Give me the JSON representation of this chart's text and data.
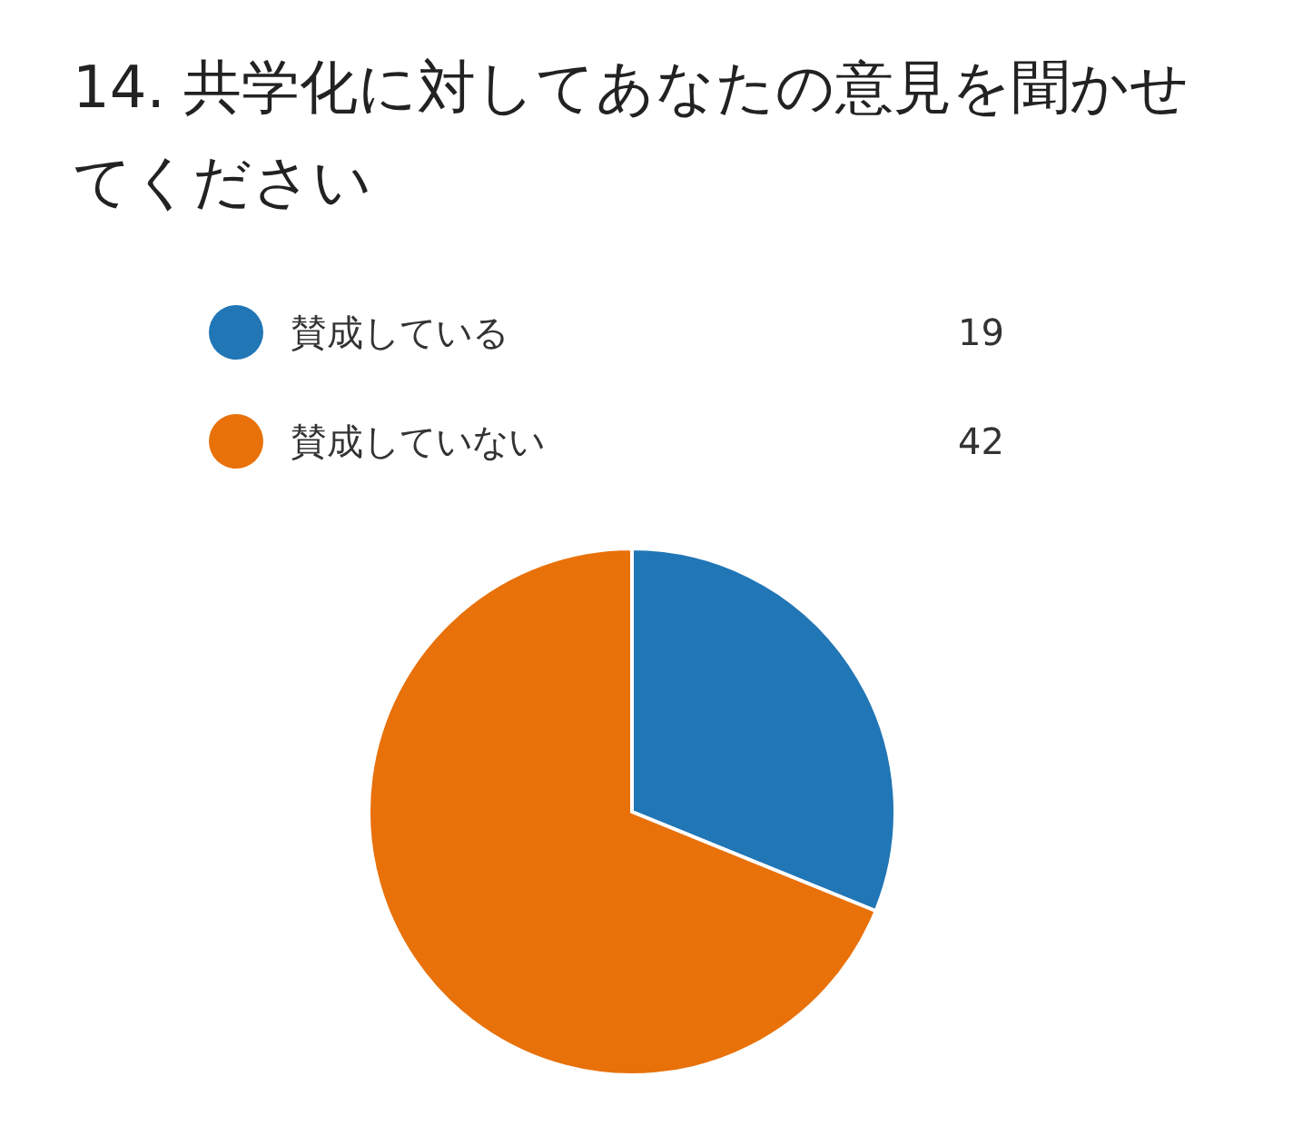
{
  "chart_data": {
    "type": "pie",
    "title": "14. 共学化に対してあなたの意見を聞かせてください",
    "categories": [
      "賛成している",
      "賛成していない"
    ],
    "values": [
      19,
      42
    ],
    "colors": [
      "#2176b6",
      "#e8710a"
    ],
    "legend": "top",
    "data_labels": true
  }
}
